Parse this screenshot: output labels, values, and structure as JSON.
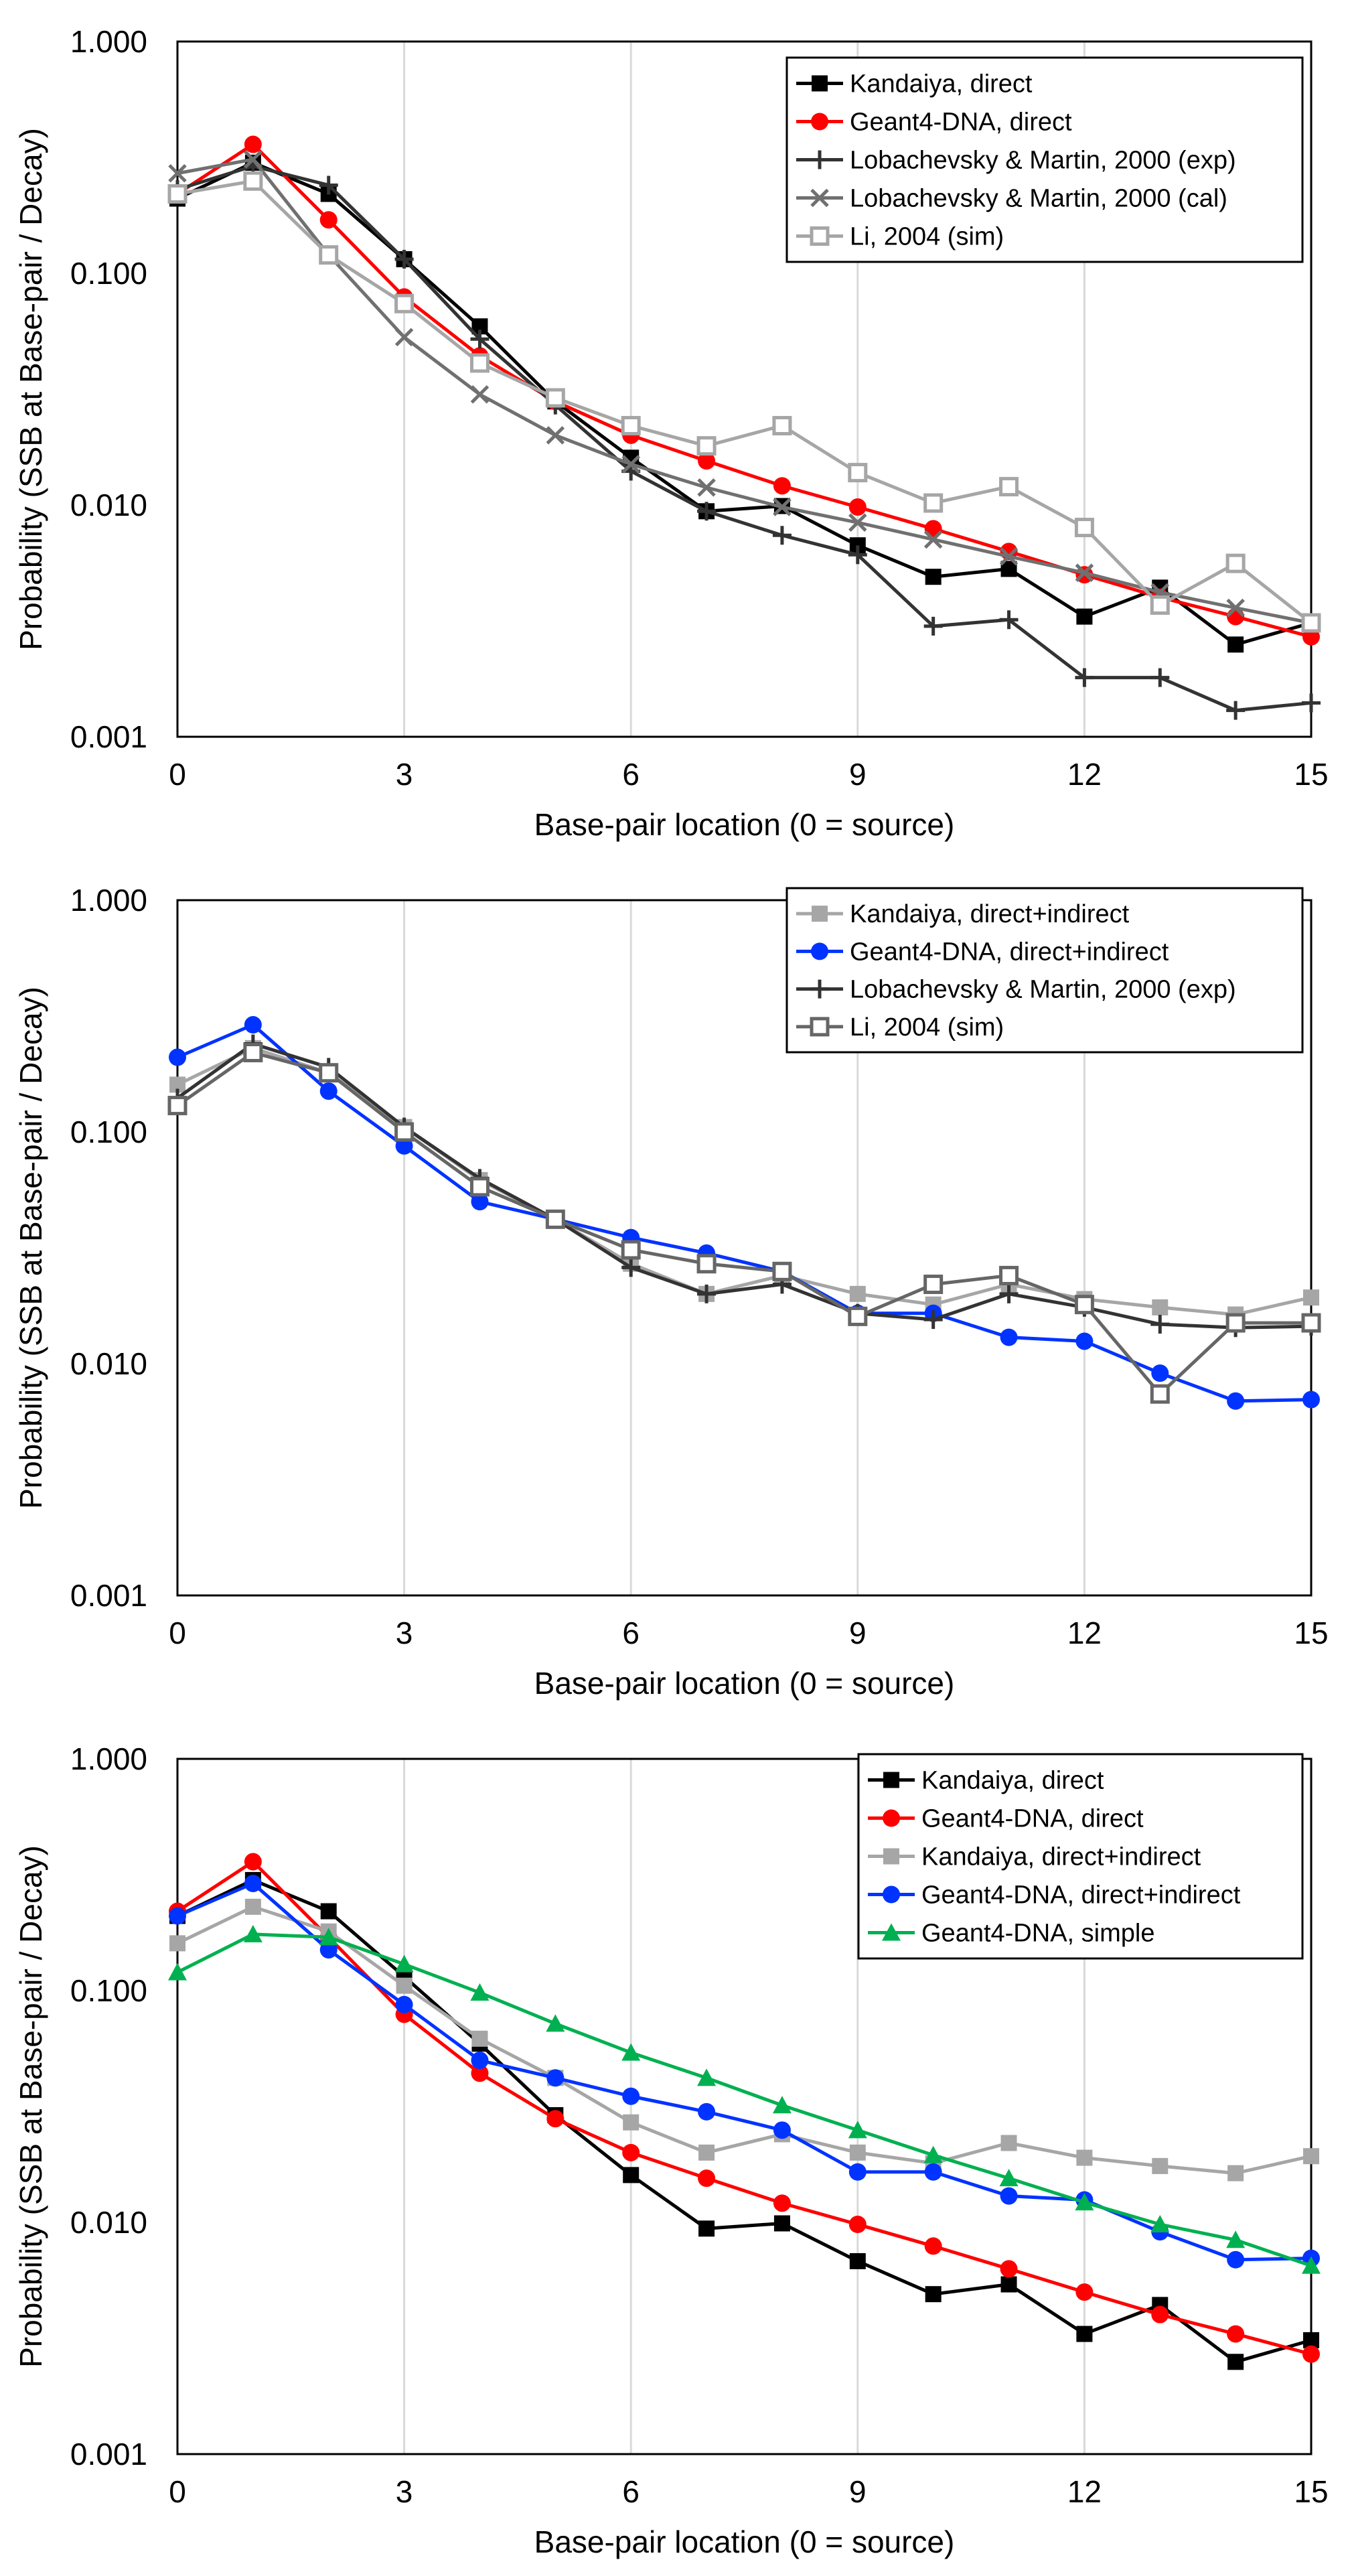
{
  "chart_data": [
    {
      "type": "line",
      "title": "",
      "xlabel": "Base-pair location (0 = source)",
      "ylabel": "Probability (SSB at Base-pair / Decay)",
      "yscale": "log",
      "ylim": [
        0.001,
        1
      ],
      "xlim": [
        0,
        15
      ],
      "xticks": [
        0,
        3,
        6,
        9,
        12,
        15
      ],
      "yticks": [
        0.001,
        0.01,
        0.1,
        1
      ],
      "ytick_labels": [
        "0.001",
        "0.010",
        "0.100",
        "1.000"
      ],
      "xtick_labels": [
        "0",
        "3",
        "6",
        "9",
        "12",
        "15"
      ],
      "grid": "vertical",
      "legend_position": "top-right",
      "series": [
        {
          "name": "Kandaiya, direct",
          "color": "#000000",
          "marker": "square",
          "values": [
            0.21,
            0.3,
            0.22,
            0.115,
            0.059,
            0.028,
            0.016,
            0.0094,
            0.0099,
            0.0067,
            0.0049,
            0.0053,
            0.0033,
            0.0044,
            0.0025,
            0.0031
          ]
        },
        {
          "name": "Geant4-DNA, direct",
          "color": "#ff0000",
          "marker": "circle",
          "values": [
            0.22,
            0.36,
            0.17,
            0.079,
            0.044,
            0.028,
            0.02,
            0.0155,
            0.0121,
            0.0098,
            0.0079,
            0.0063,
            0.005,
            0.004,
            0.0033,
            0.0027
          ]
        },
        {
          "name": "Lobachevsky & Martin, 2000 (exp)",
          "color": "#333333",
          "marker": "plus",
          "values": [
            0.23,
            0.29,
            0.24,
            0.115,
            0.052,
            0.027,
            0.014,
            0.0094,
            0.0074,
            0.0061,
            0.003,
            0.0032,
            0.0018,
            0.0018,
            0.0013,
            0.0014
          ]
        },
        {
          "name": "Lobachevsky & Martin, 2000 (cal)",
          "color": "#707070",
          "marker": "cross",
          "values": [
            0.27,
            0.31,
            0.12,
            0.053,
            0.03,
            0.02,
            0.015,
            0.0119,
            0.0098,
            0.0084,
            0.0071,
            0.006,
            0.0051,
            0.0042,
            0.0036,
            0.0031
          ]
        },
        {
          "name": "Li, 2004 (sim)",
          "color": "#a6a6a6",
          "marker": "square-open",
          "values": [
            0.22,
            0.25,
            0.12,
            0.074,
            0.041,
            0.029,
            0.022,
            0.018,
            0.022,
            0.0138,
            0.0102,
            0.012,
            0.008,
            0.0037,
            0.0056,
            0.0031
          ]
        }
      ]
    },
    {
      "type": "line",
      "title": "",
      "xlabel": "Base-pair location (0 = source)",
      "ylabel": "Probability (SSB at Base-pair / Decay)",
      "yscale": "log",
      "ylim": [
        0.001,
        1
      ],
      "xlim": [
        0,
        15
      ],
      "xticks": [
        0,
        3,
        6,
        9,
        12,
        15
      ],
      "yticks": [
        0.001,
        0.01,
        0.1,
        1
      ],
      "ytick_labels": [
        "0.001",
        "0.010",
        "0.100",
        "1.000"
      ],
      "xtick_labels": [
        "0",
        "3",
        "6",
        "9",
        "12",
        "15"
      ],
      "grid": "vertical",
      "legend_position": "top-right",
      "series": [
        {
          "name": "Kandaiya, direct+indirect",
          "color": "#a6a6a6",
          "marker": "square",
          "values": [
            0.16,
            0.23,
            0.18,
            0.105,
            0.062,
            0.042,
            0.027,
            0.02,
            0.024,
            0.02,
            0.018,
            0.022,
            0.019,
            0.0175,
            0.0163,
            0.0193
          ]
        },
        {
          "name": "Geant4-DNA, direct+indirect",
          "color": "#0033ff",
          "marker": "circle",
          "values": [
            0.21,
            0.29,
            0.15,
            0.087,
            0.05,
            0.042,
            0.035,
            0.03,
            0.025,
            0.0165,
            0.0165,
            0.013,
            0.0125,
            0.0091,
            0.0069,
            0.007
          ]
        },
        {
          "name": "Lobachevsky & Martin, 2000 (exp)",
          "color": "#333333",
          "marker": "plus",
          "values": [
            0.14,
            0.24,
            0.19,
            0.105,
            0.063,
            0.042,
            0.026,
            0.02,
            0.022,
            0.0165,
            0.0155,
            0.02,
            0.0175,
            0.0148,
            0.0143,
            0.0145
          ]
        },
        {
          "name": "Li, 2004 (sim)",
          "color": "#666666",
          "marker": "square-open",
          "values": [
            0.13,
            0.22,
            0.18,
            0.1,
            0.058,
            0.042,
            0.031,
            0.027,
            0.025,
            0.016,
            0.022,
            0.024,
            0.018,
            0.0074,
            0.015,
            0.015
          ]
        }
      ]
    },
    {
      "type": "line",
      "title": "",
      "xlabel": "Base-pair location (0 = source)",
      "ylabel": "Probability (SSB at Base-pair / Decay)",
      "yscale": "log",
      "ylim": [
        0.001,
        1
      ],
      "xlim": [
        0,
        15
      ],
      "xticks": [
        0,
        3,
        6,
        9,
        12,
        15
      ],
      "yticks": [
        0.001,
        0.01,
        0.1,
        1
      ],
      "ytick_labels": [
        "0.001",
        "0.010",
        "0.100",
        "1.000"
      ],
      "xtick_labels": [
        "0",
        "3",
        "6",
        "9",
        "12",
        "15"
      ],
      "grid": "vertical",
      "legend_position": "top-right",
      "series": [
        {
          "name": "Kandaiya, direct",
          "color": "#000000",
          "marker": "square",
          "values": [
            0.21,
            0.3,
            0.22,
            0.115,
            0.059,
            0.029,
            0.016,
            0.0094,
            0.0099,
            0.0068,
            0.0049,
            0.0054,
            0.0033,
            0.0044,
            0.0025,
            0.0031
          ]
        },
        {
          "name": "Geant4-DNA, direct",
          "color": "#ff0000",
          "marker": "circle",
          "values": [
            0.22,
            0.36,
            0.17,
            0.079,
            0.044,
            0.028,
            0.02,
            0.0155,
            0.0121,
            0.0098,
            0.0079,
            0.0063,
            0.005,
            0.004,
            0.0033,
            0.0027
          ]
        },
        {
          "name": "Kandaiya, direct+indirect",
          "color": "#a6a6a6",
          "marker": "square",
          "values": [
            0.16,
            0.23,
            0.18,
            0.105,
            0.062,
            0.042,
            0.027,
            0.02,
            0.024,
            0.02,
            0.018,
            0.022,
            0.019,
            0.0175,
            0.0163,
            0.0193
          ]
        },
        {
          "name": "Geant4-DNA, direct+indirect",
          "color": "#0033ff",
          "marker": "circle",
          "values": [
            0.21,
            0.29,
            0.15,
            0.087,
            0.05,
            0.042,
            0.035,
            0.03,
            0.025,
            0.0165,
            0.0165,
            0.013,
            0.0125,
            0.0091,
            0.0069,
            0.007
          ]
        },
        {
          "name": "Geant4-DNA, simple",
          "color": "#00b050",
          "marker": "triangle",
          "values": [
            0.12,
            0.175,
            0.17,
            0.13,
            0.098,
            0.072,
            0.054,
            0.042,
            0.032,
            0.025,
            0.0195,
            0.0155,
            0.0122,
            0.0098,
            0.0084,
            0.0065
          ]
        }
      ]
    }
  ]
}
